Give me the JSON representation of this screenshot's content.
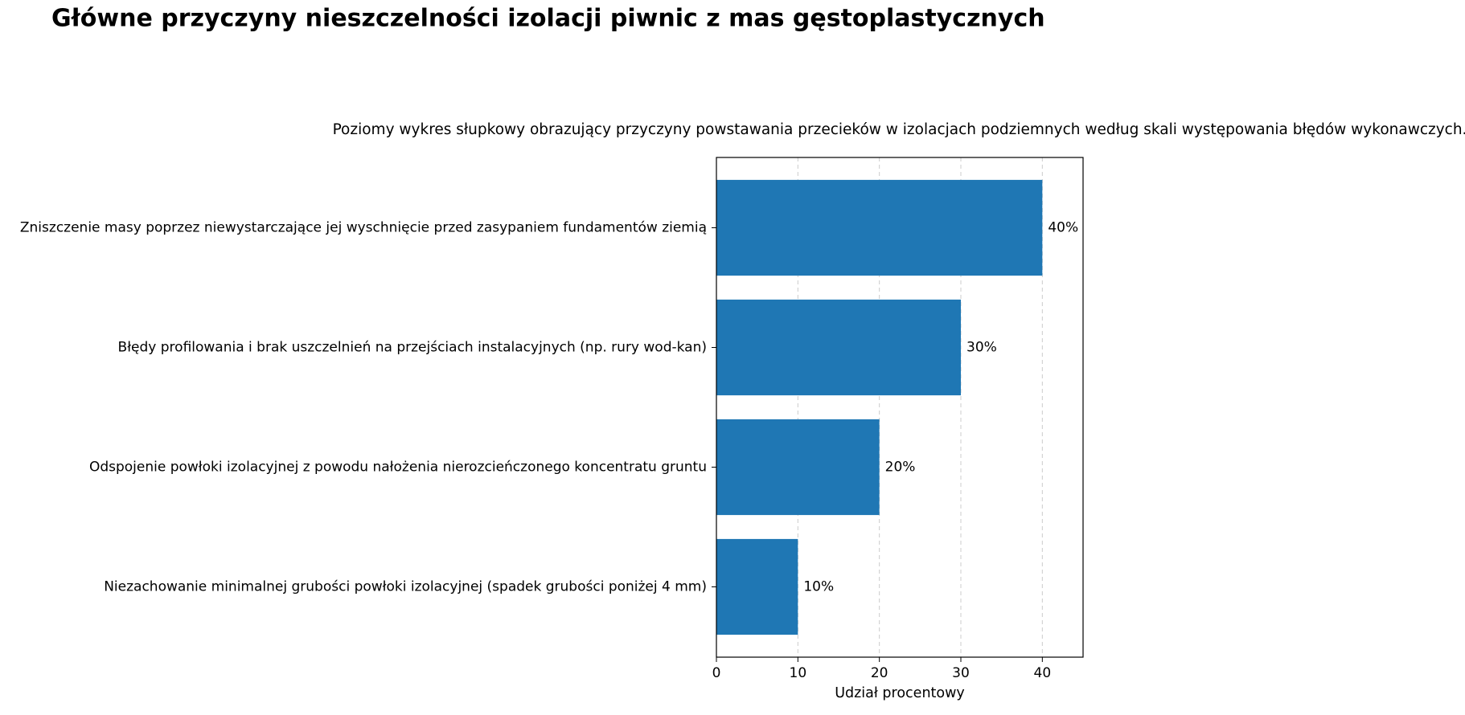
{
  "chart_data": {
    "type": "barh",
    "title": "Główne przyczyny nieszczelności izolacji piwnic z mas gęstoplastycznych",
    "subtitle": "Poziomy wykres słupkowy obrazujący przyczyny powstawania przecieków w izolacjach podziemnych według skali występowania błędów wykonawczych.",
    "xlabel": "Udział procentowy",
    "categories": [
      "Zniszczenie masy poprzez niewystarczające jej wyschnięcie przed zasypaniem fundamentów ziemią",
      "Błędy profilowania i brak uszczelnień na przejściach instalacyjnych (np. rury wod-kan)",
      "Odspojenie powłoki izolacyjnej z powodu nałożenia nierozcieńczonego koncentratu gruntu",
      "Niezachowanie minimalnej grubości powłoki izolacyjnej (spadek grubości poniżej 4 mm)"
    ],
    "values": [
      40,
      30,
      20,
      10
    ],
    "value_labels": [
      "40%",
      "30%",
      "20%",
      "10%"
    ],
    "color": "#1f77b4",
    "xlim": [
      0,
      45
    ],
    "xticks": [
      0,
      10,
      20,
      30,
      40
    ],
    "grid": true
  }
}
